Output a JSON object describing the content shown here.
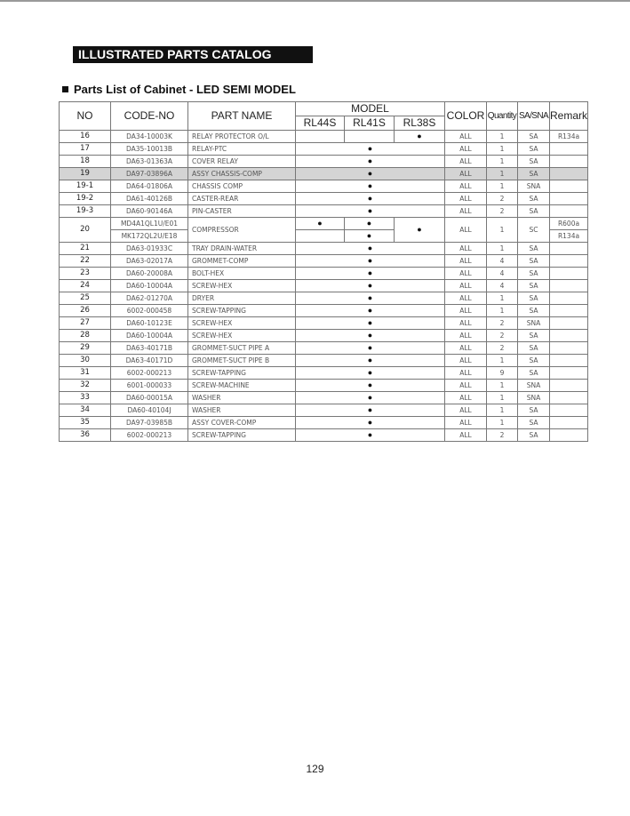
{
  "title": "ILLUSTRATED PARTS CATALOG",
  "subtitle": "Parts List of Cabinet - LED SEMI MODEL",
  "page_number": "129",
  "table": {
    "headers": {
      "no": "NO",
      "code": "CODE-NO",
      "name": "PART NAME",
      "model": "MODEL",
      "models": [
        "RL44S",
        "RL41S",
        "RL38S"
      ],
      "color": "COLOR",
      "qty": "Quantity",
      "sa": "SA/SNA",
      "remark": "Remark"
    },
    "marker": "●",
    "rows": [
      {
        "no": "16",
        "code": "DA34-10003K",
        "name": "RELAY PROTECTOR O/L",
        "models": "RL38S",
        "color": "ALL",
        "qty": "1",
        "sa": "SA",
        "remark": "R134a"
      },
      {
        "no": "17",
        "code": "DA35-10013B",
        "name": "RELAY-PTC",
        "models": "all",
        "color": "ALL",
        "qty": "1",
        "sa": "SA",
        "remark": ""
      },
      {
        "no": "18",
        "code": "DA63-01363A",
        "name": "COVER RELAY",
        "models": "all",
        "color": "ALL",
        "qty": "1",
        "sa": "SA",
        "remark": ""
      },
      {
        "no": "19",
        "code": "DA97-03896A",
        "name": "ASSY CHASSIS-COMP",
        "models": "all",
        "color": "ALL",
        "qty": "1",
        "sa": "SA",
        "remark": "",
        "highlight": true
      },
      {
        "no": "19-1",
        "code": "DA64-01806A",
        "name": "CHASSIS COMP",
        "models": "all",
        "color": "ALL",
        "qty": "1",
        "sa": "SNA",
        "remark": ""
      },
      {
        "no": "19-2",
        "code": "DA61-40126B",
        "name": "CASTER-REAR",
        "models": "all",
        "color": "ALL",
        "qty": "2",
        "sa": "SA",
        "remark": ""
      },
      {
        "no": "19-3",
        "code": "DA60-90146A",
        "name": "PIN-CASTER",
        "models": "all",
        "color": "ALL",
        "qty": "2",
        "sa": "SA",
        "remark": ""
      }
    ],
    "compressor": {
      "no": "20",
      "codes": [
        "MD4A1QL1U/E01",
        "MK172QL2U/E18"
      ],
      "name": "COMPRESSOR",
      "color": "ALL",
      "qty": "1",
      "sa": "SC",
      "remarks": [
        "R600a",
        "R134a"
      ]
    },
    "rows2": [
      {
        "no": "21",
        "code": "DA63-01933C",
        "name": "TRAY DRAIN-WATER",
        "color": "ALL",
        "qty": "1",
        "sa": "SA"
      },
      {
        "no": "22",
        "code": "DA63-02017A",
        "name": "GROMMET-COMP",
        "color": "ALL",
        "qty": "4",
        "sa": "SA"
      },
      {
        "no": "23",
        "code": "DA60-20008A",
        "name": "BOLT-HEX",
        "color": "ALL",
        "qty": "4",
        "sa": "SA"
      },
      {
        "no": "24",
        "code": "DA60-10004A",
        "name": "SCREW-HEX",
        "color": "ALL",
        "qty": "4",
        "sa": "SA"
      },
      {
        "no": "25",
        "code": "DA62-01270A",
        "name": "DRYER",
        "color": "ALL",
        "qty": "1",
        "sa": "SA"
      },
      {
        "no": "26",
        "code": "6002-000458",
        "name": "SCREW-TAPPING",
        "color": "ALL",
        "qty": "1",
        "sa": "SA"
      },
      {
        "no": "27",
        "code": "DA60-10123E",
        "name": "SCREW-HEX",
        "color": "ALL",
        "qty": "2",
        "sa": "SNA"
      },
      {
        "no": "28",
        "code": "DA60-10004A",
        "name": "SCREW-HEX",
        "color": "ALL",
        "qty": "2",
        "sa": "SA"
      },
      {
        "no": "29",
        "code": "DA63-40171B",
        "name": "GROMMET-SUCT PIPE A",
        "color": "ALL",
        "qty": "2",
        "sa": "SA"
      },
      {
        "no": "30",
        "code": "DA63-40171D",
        "name": "GROMMET-SUCT PIPE B",
        "color": "ALL",
        "qty": "1",
        "sa": "SA"
      },
      {
        "no": "31",
        "code": "6002-000213",
        "name": "SCREW-TAPPING",
        "color": "ALL",
        "qty": "9",
        "sa": "SA"
      },
      {
        "no": "32",
        "code": "6001-000033",
        "name": "SCREW-MACHINE",
        "color": "ALL",
        "qty": "1",
        "sa": "SNA"
      },
      {
        "no": "33",
        "code": "DA60-00015A",
        "name": "WASHER",
        "color": "ALL",
        "qty": "1",
        "sa": "SNA"
      },
      {
        "no": "34",
        "code": "DA60-40104J",
        "name": "WASHER",
        "color": "ALL",
        "qty": "1",
        "sa": "SA"
      },
      {
        "no": "35",
        "code": "DA97-03985B",
        "name": "ASSY COVER-COMP",
        "color": "ALL",
        "qty": "1",
        "sa": "SA"
      },
      {
        "no": "36",
        "code": "6002-000213",
        "name": "SCREW-TAPPING",
        "color": "ALL",
        "qty": "2",
        "sa": "SA"
      }
    ]
  }
}
